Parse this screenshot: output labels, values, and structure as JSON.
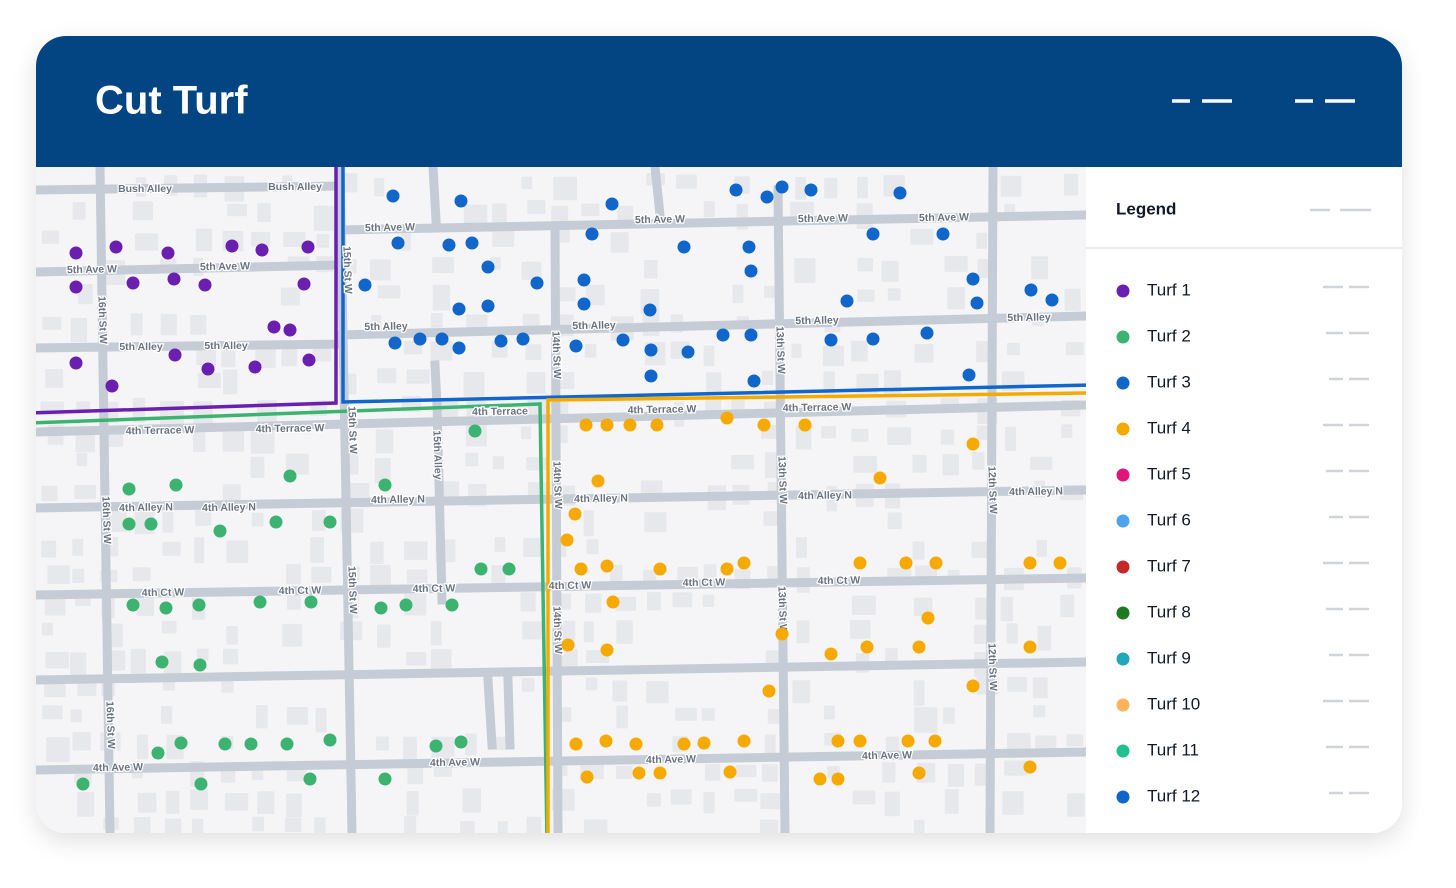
{
  "header": {
    "title": "Cut Turf"
  },
  "map": {
    "street_labels": [
      "Bush Alley",
      "Bush Alley",
      "5th Ave W",
      "5th Ave W",
      "5th Ave W",
      "5th Ave W",
      "5th Ave W",
      "5th Ave W",
      "5th Alley",
      "5th Alley",
      "5th Alley",
      "5th Alley",
      "5th Alley",
      "5th Alley",
      "4th Terrace W",
      "4th Terrace W",
      "4th Terrace W",
      "4th Terrace W",
      "4th Terrace",
      "4th Alley N",
      "4th Alley N",
      "4th Alley N",
      "4th Alley N",
      "4th Alley N",
      "4th Alley N",
      "4th Ct W",
      "4th Ct W",
      "4th Ct W",
      "4th Ct W",
      "4th Ct W",
      "4th Ct W",
      "4th Ave W",
      "4th Ave W",
      "4th Ave W",
      "4th Ave W",
      "16th St W",
      "16th St W",
      "16th St W",
      "15th St W",
      "15th St W",
      "15th St W",
      "15th Alley",
      "14th St W",
      "14th St W",
      "14th St W",
      "13th St W",
      "13th St W",
      "13th St W",
      "12th St W",
      "12th St W"
    ]
  },
  "legend": {
    "title": "Legend",
    "items": [
      {
        "label": "Turf 1",
        "color": "#6a1fb0"
      },
      {
        "label": "Turf 2",
        "color": "#3cb371"
      },
      {
        "label": "Turf 3",
        "color": "#1166cc"
      },
      {
        "label": "Turf 4",
        "color": "#f6aa00"
      },
      {
        "label": "Turf 5",
        "color": "#e0157a"
      },
      {
        "label": "Turf 6",
        "color": "#4da3f0"
      },
      {
        "label": "Turf 7",
        "color": "#c62828"
      },
      {
        "label": "Turf 8",
        "color": "#1f7a1f"
      },
      {
        "label": "Turf 9",
        "color": "#1ea8b8"
      },
      {
        "label": "Turf 10",
        "color": "#ffb35c"
      },
      {
        "label": "Turf 11",
        "color": "#20c08f"
      },
      {
        "label": "Turf 12",
        "color": "#1166cc"
      }
    ]
  }
}
